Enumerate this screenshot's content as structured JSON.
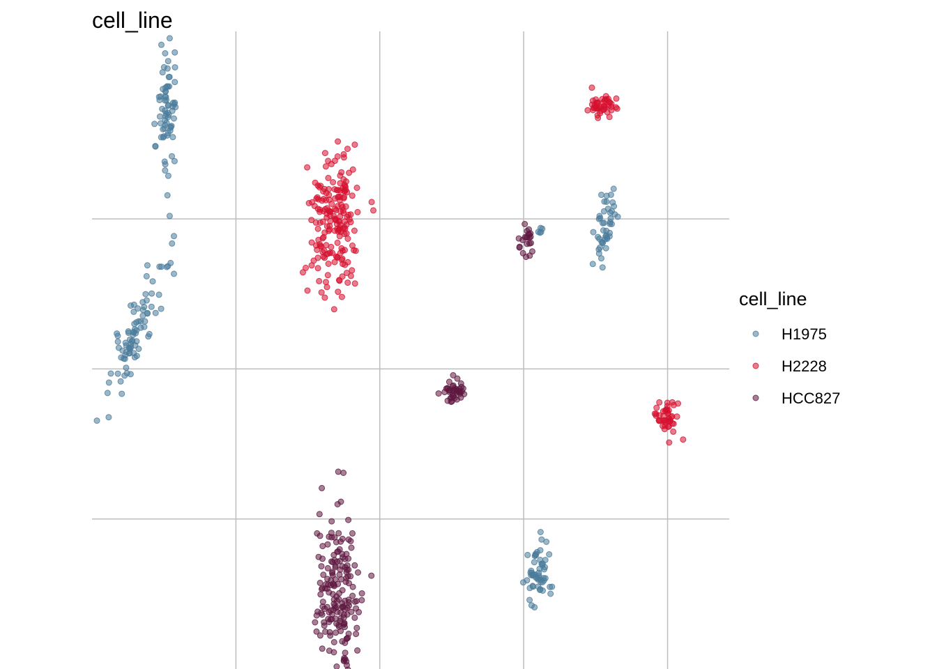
{
  "chart_data": {
    "type": "scatter",
    "title": "cell_line",
    "xlabel": "",
    "ylabel": "",
    "grid": true,
    "axis_text": false,
    "xlim": [
      -6,
      9.5
    ],
    "ylim": [
      -6,
      11
    ],
    "x_gridlines": [
      -2.5,
      1,
      4.5,
      8
    ],
    "y_gridlines": [
      -2,
      2,
      6
    ],
    "legend": {
      "title": "cell_line",
      "position": "right",
      "entries": [
        {
          "label": "H1975",
          "color": "#4a7c9b"
        },
        {
          "label": "H2228",
          "color": "#d6112f"
        },
        {
          "label": "HCC827",
          "color": "#5e1840"
        }
      ]
    },
    "point_alpha": 0.55,
    "clusters": [
      {
        "series": "H1975",
        "shape": "ellipse",
        "cx": -4.2,
        "cy": 8.8,
        "sx": 0.12,
        "sy": 0.95,
        "n": 70,
        "tilt": 0.0,
        "seed": 11
      },
      {
        "series": "H1975",
        "shape": "ellipse",
        "cx": -4.9,
        "cy": 3.0,
        "sx": 0.18,
        "sy": 0.95,
        "n": 85,
        "tilt": 0.38,
        "seed": 12
      },
      {
        "series": "H1975",
        "shape": "ellipse",
        "cx": 6.5,
        "cy": 5.8,
        "sx": 0.12,
        "sy": 0.45,
        "n": 45,
        "tilt": 0.15,
        "seed": 13
      },
      {
        "series": "H1975",
        "shape": "ellipse",
        "cx": 4.9,
        "cy": 5.7,
        "sx": 0.04,
        "sy": 0.05,
        "n": 5,
        "tilt": 0.0,
        "seed": 14
      },
      {
        "series": "H1975",
        "shape": "ellipse",
        "cx": 4.9,
        "cy": -3.4,
        "sx": 0.15,
        "sy": 0.4,
        "n": 55,
        "tilt": 0.0,
        "seed": 15
      },
      {
        "series": "H2228",
        "shape": "ellipse",
        "cx": -0.1,
        "cy": 6.0,
        "sx": 0.3,
        "sy": 0.95,
        "n": 190,
        "tilt": 0.0,
        "seed": 21
      },
      {
        "series": "H2228",
        "shape": "ellipse",
        "cx": 6.4,
        "cy": 9.0,
        "sx": 0.15,
        "sy": 0.16,
        "n": 45,
        "tilt": 0.0,
        "seed": 22
      },
      {
        "series": "H2228",
        "shape": "ellipse",
        "cx": 8.0,
        "cy": 0.7,
        "sx": 0.14,
        "sy": 0.22,
        "n": 45,
        "tilt": 0.0,
        "seed": 23
      },
      {
        "series": "HCC827",
        "shape": "ellipse",
        "cx": 4.6,
        "cy": 5.5,
        "sx": 0.08,
        "sy": 0.22,
        "n": 22,
        "tilt": 0.0,
        "seed": 31
      },
      {
        "series": "HCC827",
        "shape": "ellipse",
        "cx": 2.8,
        "cy": 1.4,
        "sx": 0.12,
        "sy": 0.18,
        "n": 40,
        "tilt": 0.0,
        "seed": 32
      },
      {
        "series": "HCC827",
        "shape": "ellipse",
        "cx": 0.0,
        "cy": -4.0,
        "sx": 0.27,
        "sy": 1.1,
        "n": 180,
        "tilt": 0.0,
        "seed": 33
      }
    ]
  }
}
